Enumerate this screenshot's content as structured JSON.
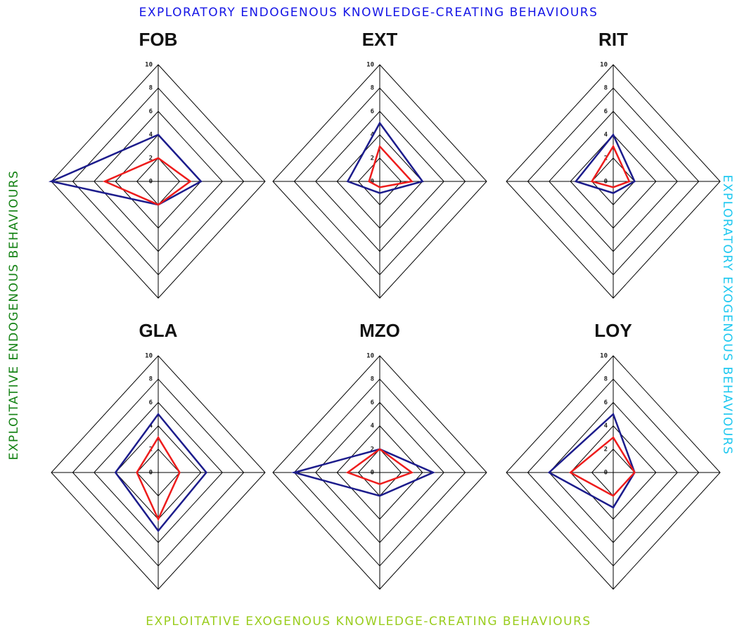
{
  "axis_titles": [
    "EXPLORATORY ENDOGENOUS KNOWLEDGE-CREATING BEHAVIOURS",
    "EXPLORATORY EXOGENOUS BEHAVIOURS",
    "EXPLOITATIVE EXOGENOUS KNOWLEDGE-CREATING BEHAVIOURS",
    "EXPLOITATIVE ENDOGENOUS BEHAVIOURS"
  ],
  "axis_title_colors": [
    "#1414e6",
    "#1ec8f0",
    "#9acd1e",
    "#148214"
  ],
  "chart_data": [
    {
      "type": "radar",
      "title": "FOB",
      "ylim": [
        0,
        10
      ],
      "yticks": [
        0,
        2,
        4,
        6,
        8,
        10
      ],
      "grid": true,
      "series": [
        {
          "color": "#1c1c8c",
          "values": [
            4,
            4,
            2,
            10
          ]
        },
        {
          "color": "#ee1c1c",
          "values": [
            2,
            3,
            2,
            5
          ]
        }
      ]
    },
    {
      "type": "radar",
      "title": "EXT",
      "ylim": [
        0,
        10
      ],
      "yticks": [
        0,
        2,
        4,
        6,
        8,
        10
      ],
      "grid": true,
      "series": [
        {
          "color": "#1c1c8c",
          "values": [
            5,
            4,
            1,
            3
          ]
        },
        {
          "color": "#ee1c1c",
          "values": [
            3,
            3,
            0.5,
            1
          ]
        }
      ]
    },
    {
      "type": "radar",
      "title": "RIT",
      "ylim": [
        0,
        10
      ],
      "yticks": [
        0,
        2,
        4,
        6,
        8,
        10
      ],
      "grid": true,
      "series": [
        {
          "color": "#1c1c8c",
          "values": [
            4,
            2,
            1,
            3.5
          ]
        },
        {
          "color": "#ee1c1c",
          "values": [
            3,
            1.5,
            0.5,
            2
          ]
        }
      ]
    },
    {
      "type": "radar",
      "title": "GLA",
      "ylim": [
        0,
        10
      ],
      "yticks": [
        0,
        2,
        4,
        6,
        8,
        10
      ],
      "grid": true,
      "series": [
        {
          "color": "#1c1c8c",
          "values": [
            5,
            4.5,
            5,
            4
          ]
        },
        {
          "color": "#ee1c1c",
          "values": [
            3,
            2,
            4,
            2
          ]
        }
      ]
    },
    {
      "type": "radar",
      "title": "MZO",
      "ylim": [
        0,
        10
      ],
      "yticks": [
        0,
        2,
        4,
        6,
        8,
        10
      ],
      "grid": true,
      "series": [
        {
          "color": "#1c1c8c",
          "values": [
            2,
            5,
            2,
            8
          ]
        },
        {
          "color": "#ee1c1c",
          "values": [
            2,
            3,
            1,
            3
          ]
        }
      ]
    },
    {
      "type": "radar",
      "title": "LOY",
      "ylim": [
        0,
        10
      ],
      "yticks": [
        0,
        2,
        4,
        6,
        8,
        10
      ],
      "grid": true,
      "series": [
        {
          "color": "#1c1c8c",
          "values": [
            5,
            2,
            3,
            6
          ]
        },
        {
          "color": "#ee1c1c",
          "values": [
            3,
            2,
            2,
            4
          ]
        }
      ]
    }
  ]
}
